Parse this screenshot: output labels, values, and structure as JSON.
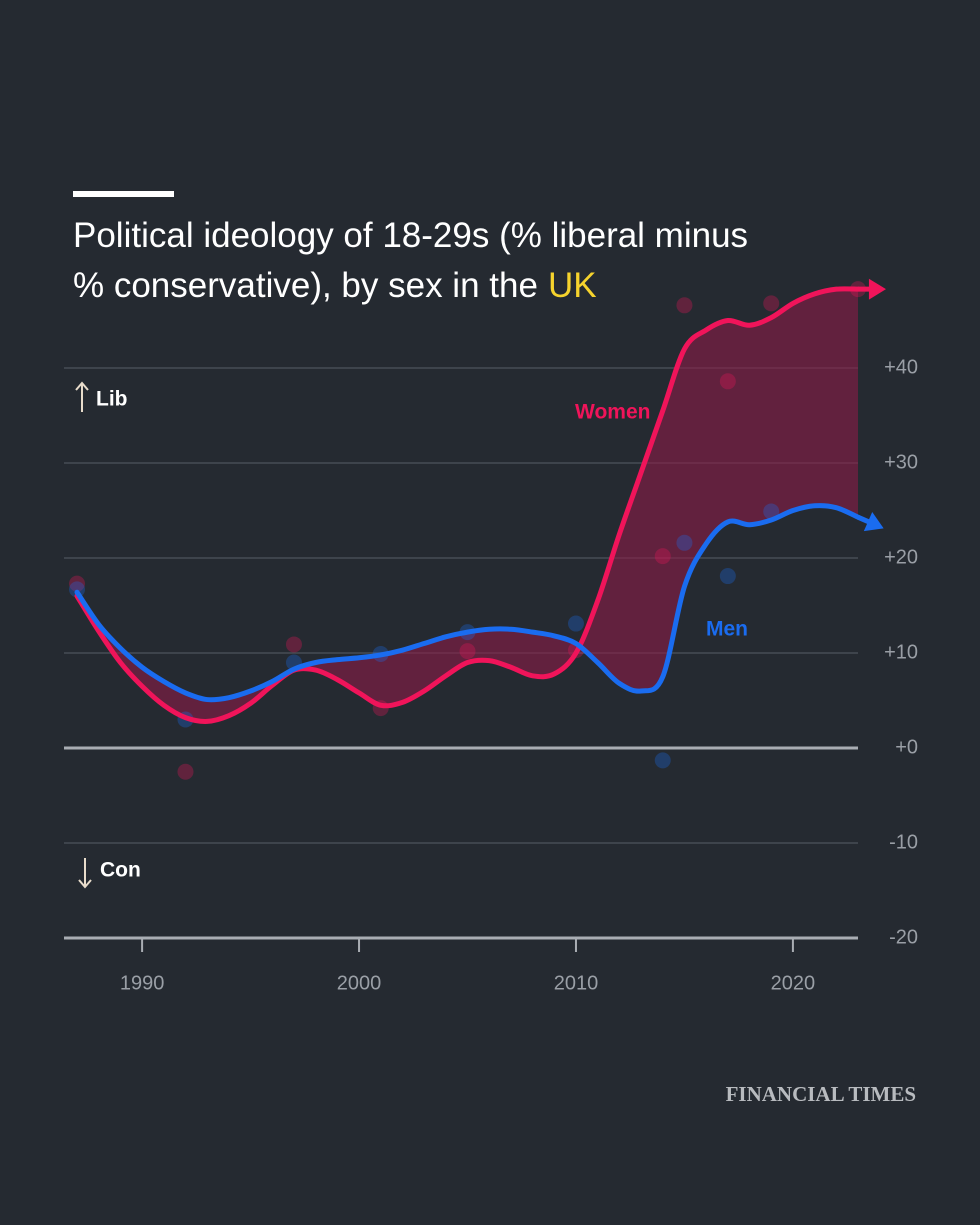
{
  "chart_data": {
    "type": "line",
    "title": "Political ideology of 18-29s (% liberal minus % conservative), by sex in the",
    "title_highlight": "UK",
    "annotations": [
      "Lib",
      "Con"
    ],
    "source": "FINANCIAL TIMES",
    "x": [
      1987,
      1988,
      1989,
      1990,
      1991,
      1992,
      1993,
      1994,
      1995,
      1996,
      1997,
      1998,
      1999,
      2000,
      2001,
      2002,
      2003,
      2004,
      2005,
      2006,
      2007,
      2008,
      2009,
      2010,
      2011,
      2012,
      2013,
      2014,
      2015,
      2016,
      2017,
      2018,
      2019,
      2020,
      2021,
      2022,
      2023
    ],
    "series": [
      {
        "name": "Women",
        "color": "#f0145a",
        "values": [
          16,
          12.3,
          9,
          6.5,
          4.5,
          3.2,
          2.8,
          3.4,
          4.7,
          6.6,
          8.2,
          8.2,
          7.2,
          5.8,
          4.5,
          4.8,
          6,
          7.6,
          9,
          9.2,
          8.5,
          7.6,
          7.8,
          10,
          15.5,
          22.5,
          29,
          35.5,
          42,
          44,
          45,
          44.5,
          45.3,
          46.8,
          47.8,
          48.3,
          48.3
        ],
        "dot_x": [
          1987,
          1992,
          1997,
          2001,
          2005,
          2010,
          2014,
          2015,
          2017,
          2019,
          2023
        ],
        "dot_values": [
          17.3,
          -2.5,
          10.9,
          4.2,
          10.2,
          10.3,
          20.2,
          46.6,
          38.6,
          46.8,
          48.3
        ]
      },
      {
        "name": "Men",
        "color": "#1a6cf0",
        "values": [
          16.4,
          13,
          10.5,
          8.5,
          7,
          5.8,
          5.1,
          5.3,
          6,
          7,
          8.3,
          9,
          9.3,
          9.5,
          9.8,
          10.3,
          11,
          11.7,
          12.2,
          12.5,
          12.5,
          12.2,
          11.8,
          11,
          9,
          6.8,
          6,
          7.5,
          17,
          21.5,
          23.8,
          23.5,
          24,
          25,
          25.5,
          25.3,
          24.3
        ],
        "dot_x": [
          1987,
          1992,
          1997,
          2001,
          2005,
          2010,
          2014,
          2015,
          2017,
          2019
        ],
        "dot_values": [
          16.7,
          3,
          9,
          9.9,
          12.2,
          13.1,
          -1.3,
          21.6,
          18.1,
          24.9
        ]
      }
    ],
    "xlim": [
      1986.4,
      2023
    ],
    "xticks": [
      1990,
      2000,
      2010,
      2020
    ],
    "ylim": [
      -20,
      50
    ],
    "yticks": [
      {
        "value": 40,
        "label": "+40"
      },
      {
        "value": 30,
        "label": "+30"
      },
      {
        "value": 20,
        "label": "+20"
      },
      {
        "value": 10,
        "label": "+10"
      },
      {
        "value": 0,
        "label": "+0"
      },
      -10,
      -20
    ],
    "grid": true
  }
}
